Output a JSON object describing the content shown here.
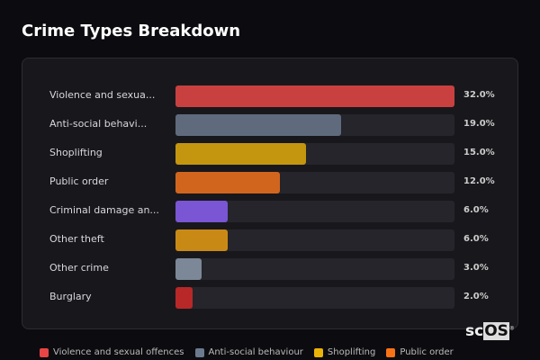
{
  "title": "Crime Types Breakdown",
  "chart_data": {
    "type": "bar",
    "orientation": "horizontal",
    "title": "Crime Types Breakdown",
    "categories": [
      "Violence and sexua...",
      "Anti-social behavi...",
      "Shoplifting",
      "Public order",
      "Criminal damage an...",
      "Other theft",
      "Other crime",
      "Burglary"
    ],
    "values": [
      32.0,
      19.0,
      15.0,
      12.0,
      6.0,
      6.0,
      3.0,
      2.0
    ],
    "value_labels": [
      "32.0%",
      "19.0%",
      "15.0%",
      "12.0%",
      "6.0%",
      "6.0%",
      "3.0%",
      "2.0%"
    ],
    "colors": [
      "#c94040",
      "#5f6b7d",
      "#c4960f",
      "#d2651e",
      "#7a55d4",
      "#c98a15",
      "#7c8898",
      "#b82828"
    ],
    "legend": {
      "placement": "bottom",
      "entries": [
        {
          "label": "Violence and sexual offences",
          "color": "#e84545"
        },
        {
          "label": "Anti-social behaviour",
          "color": "#6b7a8f"
        },
        {
          "label": "Shoplifting",
          "color": "#eab308"
        },
        {
          "label": "Public order",
          "color": "#f97316"
        }
      ]
    }
  },
  "logo": {
    "text_a": "sc",
    "text_b": "OS",
    "mark": "®"
  }
}
